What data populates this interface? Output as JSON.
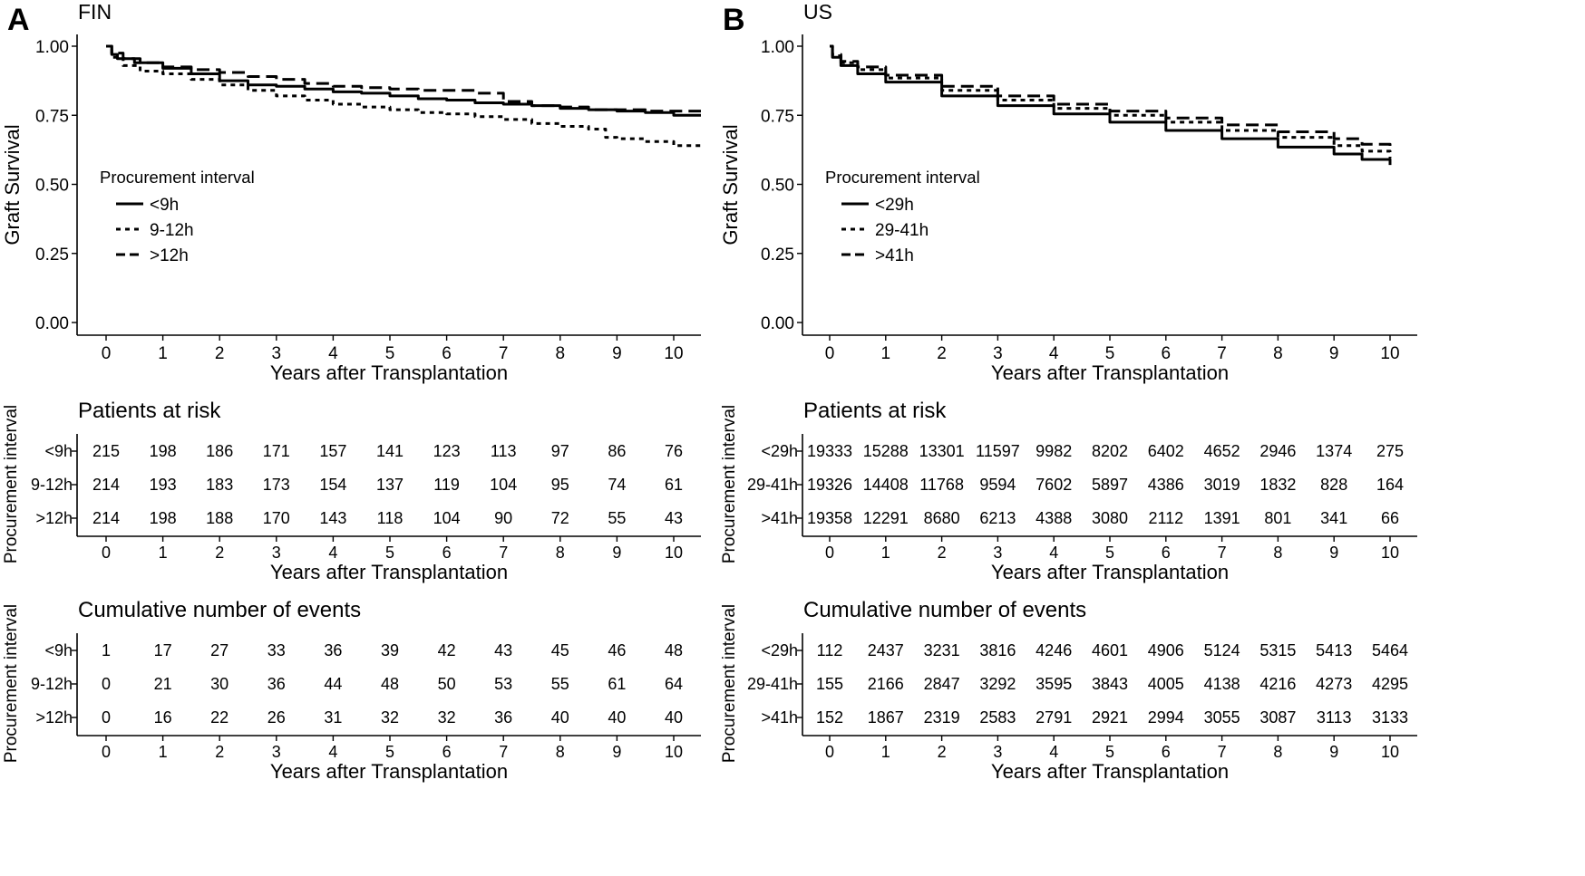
{
  "chart_data": [
    {
      "panel": "A",
      "type": "line",
      "title": "FIN",
      "xlabel": "Years after Transplantation",
      "ylabel": "Graft Survival",
      "x_ticks": [
        "0",
        "1",
        "2",
        "3",
        "4",
        "5",
        "6",
        "7",
        "8",
        "9",
        "10"
      ],
      "y_ticks": [
        "0.00",
        "0.25",
        "0.50",
        "0.75",
        "1.00"
      ],
      "xlim": [
        -0.4,
        10.5
      ],
      "ylim": [
        -0.04,
        1.04
      ],
      "legend_title": "Procurement interval",
      "series": [
        {
          "name": "<9h",
          "dash": "solid",
          "x": [
            0,
            0.1,
            0.2,
            0.5,
            1,
            1.5,
            2,
            2.5,
            3,
            3.5,
            4,
            4.5,
            5,
            5.5,
            6,
            6.5,
            7,
            7.5,
            8,
            8.5,
            9,
            9.5,
            10,
            10.5
          ],
          "y": [
            1.0,
            0.97,
            0.955,
            0.94,
            0.92,
            0.9,
            0.875,
            0.86,
            0.855,
            0.845,
            0.835,
            0.83,
            0.82,
            0.81,
            0.805,
            0.795,
            0.79,
            0.785,
            0.775,
            0.77,
            0.765,
            0.76,
            0.75,
            0.75
          ]
        },
        {
          "name": "9-12h",
          "dash": "dotted",
          "x": [
            0,
            0.1,
            0.3,
            0.6,
            1,
            1.5,
            2,
            2.5,
            3,
            3.5,
            4,
            4.5,
            5,
            5.5,
            6,
            6.5,
            7,
            7.5,
            8,
            8.5,
            8.8,
            9,
            9.5,
            10,
            10.5
          ],
          "y": [
            1.0,
            0.96,
            0.93,
            0.91,
            0.9,
            0.88,
            0.86,
            0.84,
            0.82,
            0.805,
            0.79,
            0.78,
            0.77,
            0.76,
            0.755,
            0.745,
            0.735,
            0.72,
            0.71,
            0.7,
            0.67,
            0.665,
            0.655,
            0.64,
            0.635
          ]
        },
        {
          "name": ">12h",
          "dash": "dashed",
          "x": [
            0,
            0.1,
            0.3,
            0.6,
            1,
            1.5,
            2,
            2.5,
            3,
            3.5,
            4,
            4.5,
            5,
            5.5,
            6,
            6.5,
            7,
            7.5,
            8,
            8.5,
            9,
            9.5,
            10,
            10.5
          ],
          "y": [
            1.0,
            0.975,
            0.955,
            0.94,
            0.925,
            0.915,
            0.905,
            0.89,
            0.88,
            0.865,
            0.855,
            0.85,
            0.845,
            0.84,
            0.84,
            0.83,
            0.8,
            0.785,
            0.78,
            0.77,
            0.77,
            0.765,
            0.765,
            0.765
          ]
        }
      ],
      "risk_table": {
        "title": "Patients at risk",
        "ylabel": "Procurement interval",
        "rows": [
          {
            "label": "<9h",
            "values": [
              "215",
              "198",
              "186",
              "171",
              "157",
              "141",
              "123",
              "113",
              "97",
              "86",
              "76"
            ]
          },
          {
            "label": "9-12h",
            "values": [
              "214",
              "193",
              "183",
              "173",
              "154",
              "137",
              "119",
              "104",
              "95",
              "74",
              "61"
            ]
          },
          {
            "label": ">12h",
            "values": [
              "214",
              "198",
              "188",
              "170",
              "143",
              "118",
              "104",
              "90",
              "72",
              "55",
              "43"
            ]
          }
        ]
      },
      "events_table": {
        "title": "Cumulative number of events",
        "ylabel": "Procurement interval",
        "rows": [
          {
            "label": "<9h",
            "values": [
              "1",
              "17",
              "27",
              "33",
              "36",
              "39",
              "42",
              "43",
              "45",
              "46",
              "48"
            ]
          },
          {
            "label": "9-12h",
            "values": [
              "0",
              "21",
              "30",
              "36",
              "44",
              "48",
              "50",
              "53",
              "55",
              "61",
              "64"
            ]
          },
          {
            "label": ">12h",
            "values": [
              "0",
              "16",
              "22",
              "26",
              "31",
              "32",
              "32",
              "36",
              "40",
              "40",
              "40"
            ]
          }
        ]
      }
    },
    {
      "panel": "B",
      "type": "line",
      "title": "US",
      "xlabel": "Years after Transplantation",
      "ylabel": "Graft Survival",
      "x_ticks": [
        "0",
        "1",
        "2",
        "3",
        "4",
        "5",
        "6",
        "7",
        "8",
        "9",
        "10"
      ],
      "y_ticks": [
        "0.00",
        "0.25",
        "0.50",
        "0.75",
        "1.00"
      ],
      "xlim": [
        -0.45,
        10.3
      ],
      "ylim": [
        -0.04,
        1.04
      ],
      "legend_title": "Procurement interval",
      "series": [
        {
          "name": "<29h",
          "dash": "solid",
          "x": [
            0,
            0.05,
            0.2,
            0.5,
            1,
            2,
            3,
            4,
            5,
            6,
            7,
            8,
            9,
            9.5,
            10
          ],
          "y": [
            1.0,
            0.96,
            0.93,
            0.9,
            0.87,
            0.82,
            0.785,
            0.755,
            0.725,
            0.695,
            0.665,
            0.635,
            0.61,
            0.59,
            0.57
          ]
        },
        {
          "name": "29-41h",
          "dash": "dotted",
          "x": [
            0,
            0.05,
            0.2,
            0.5,
            1,
            2,
            3,
            4,
            5,
            6,
            7,
            8,
            9,
            9.5,
            10
          ],
          "y": [
            1.0,
            0.965,
            0.94,
            0.915,
            0.885,
            0.84,
            0.805,
            0.775,
            0.75,
            0.725,
            0.695,
            0.67,
            0.64,
            0.62,
            0.595
          ]
        },
        {
          "name": ">41h",
          "dash": "dashed",
          "x": [
            0,
            0.05,
            0.2,
            0.5,
            1,
            2,
            3,
            4,
            5,
            6,
            7,
            8,
            9,
            9.5,
            10
          ],
          "y": [
            1.0,
            0.97,
            0.945,
            0.925,
            0.895,
            0.855,
            0.82,
            0.79,
            0.765,
            0.74,
            0.715,
            0.69,
            0.665,
            0.645,
            0.625
          ]
        }
      ],
      "risk_table": {
        "title": "Patients at risk",
        "ylabel": "Procurement interval",
        "rows": [
          {
            "label": "<29h",
            "values": [
              "19333",
              "15288",
              "13301",
              "11597",
              "9982",
              "8202",
              "6402",
              "4652",
              "2946",
              "1374",
              "275"
            ]
          },
          {
            "label": "29-41h",
            "values": [
              "19326",
              "14408",
              "11768",
              "9594",
              "7602",
              "5897",
              "4386",
              "3019",
              "1832",
              "828",
              "164"
            ]
          },
          {
            "label": ">41h",
            "values": [
              "19358",
              "12291",
              "8680",
              "6213",
              "4388",
              "3080",
              "2112",
              "1391",
              "801",
              "341",
              "66"
            ]
          }
        ]
      },
      "events_table": {
        "title": "Cumulative number of events",
        "ylabel": "Procurement interval",
        "rows": [
          {
            "label": "<29h",
            "values": [
              "112",
              "2437",
              "3231",
              "3816",
              "4246",
              "4601",
              "4906",
              "5124",
              "5315",
              "5413",
              "5464"
            ]
          },
          {
            "label": "29-41h",
            "values": [
              "155",
              "2166",
              "2847",
              "3292",
              "3595",
              "3843",
              "4005",
              "4138",
              "4216",
              "4273",
              "4295"
            ]
          },
          {
            "label": ">41h",
            "values": [
              "152",
              "1867",
              "2319",
              "2583",
              "2791",
              "2921",
              "2994",
              "3055",
              "3087",
              "3113",
              "3133"
            ]
          }
        ]
      }
    }
  ]
}
